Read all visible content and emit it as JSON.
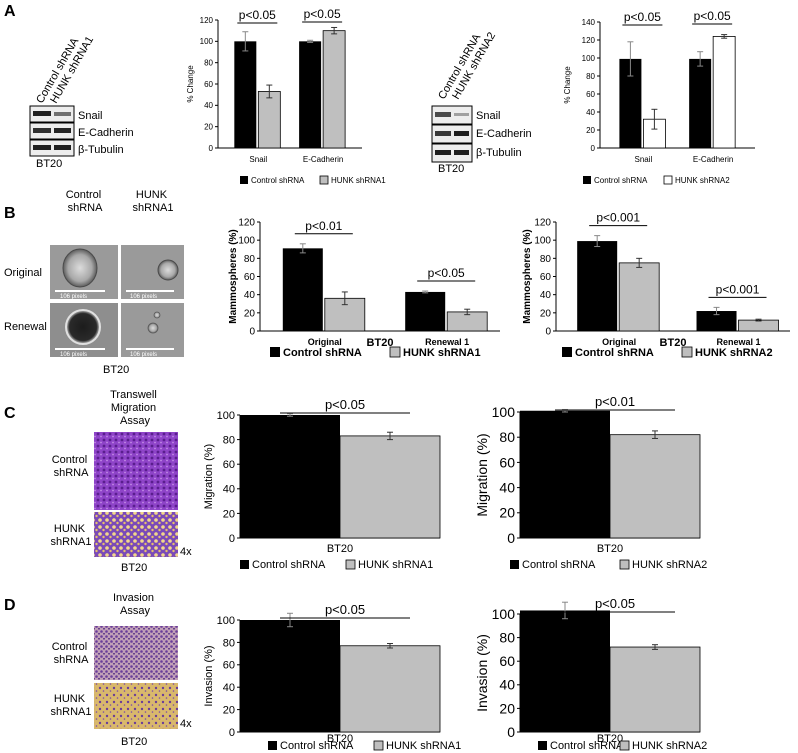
{
  "panels": {
    "A": {
      "letter": "A",
      "blot1": {
        "lane_labels": [
          "Control shRNA",
          "HUNK shRNA1"
        ],
        "bands": [
          "Snail",
          "E-Cadherin",
          "β-Tubulin"
        ],
        "cell_line": "BT20"
      },
      "blot2": {
        "lane_labels": [
          "Control shRNA",
          "HUNK shRNA2"
        ],
        "bands": [
          "Snail",
          "E-Cadherin",
          "β-Tubulin"
        ],
        "cell_line": "BT20"
      }
    },
    "B": {
      "letter": "B",
      "col_labels": [
        "Control\nshRNA",
        "HUNK\nshRNA1"
      ],
      "row_labels": [
        "Original",
        "Renewal"
      ],
      "scale_label": "106 pixels",
      "cell_line": "BT20"
    },
    "C": {
      "letter": "C",
      "assay_title": "Transwell\nMigration\nAssay",
      "row_labels": [
        "Control\nshRNA",
        "HUNK\nshRNA1"
      ],
      "magnification": "4x",
      "cell_line": "BT20"
    },
    "D": {
      "letter": "D",
      "assay_title": "Invasion\nAssay",
      "row_labels": [
        "Control\nshRNA",
        "HUNK\nshRNA1"
      ],
      "magnification": "4x",
      "cell_line": "BT20"
    }
  },
  "colors": {
    "control": "#000000",
    "hunk_gray": "#bfbfbf",
    "hunk_white": "#ffffff",
    "purple": "#7b3fb0",
    "tan": "#d7ba7a"
  },
  "chart_data": [
    {
      "id": "A1",
      "type": "bar",
      "categories": [
        "Snail",
        "E-Cadherin"
      ],
      "ylabel": "% Change",
      "xlabel": "",
      "ylim": [
        0,
        120
      ],
      "yticks": [
        0,
        20,
        40,
        60,
        80,
        100,
        120
      ],
      "series": [
        {
          "name": "Control shRNA",
          "values": [
            100,
            100
          ],
          "errors": [
            9,
            1
          ]
        },
        {
          "name": "HUNK shRNA1",
          "values": [
            53,
            110
          ],
          "errors": [
            6,
            3
          ]
        }
      ],
      "annotations": [
        "p<0.05",
        "p<0.05"
      ],
      "legend": "bottom"
    },
    {
      "id": "A2",
      "type": "bar",
      "categories": [
        "Snail",
        "E-Cadherin"
      ],
      "ylabel": "% Change",
      "xlabel": "",
      "ylim": [
        0,
        140
      ],
      "yticks": [
        0,
        20,
        40,
        60,
        80,
        100,
        120,
        140
      ],
      "series": [
        {
          "name": "Control shRNA",
          "values": [
            99,
            99
          ],
          "errors": [
            19,
            8
          ]
        },
        {
          "name": "HUNK shRNA2",
          "values": [
            32,
            124
          ],
          "errors": [
            11,
            2
          ]
        }
      ],
      "annotations": [
        "p<0.05",
        "p<0.05"
      ],
      "legend": "bottom"
    },
    {
      "id": "B1",
      "type": "bar",
      "categories": [
        "Original",
        "Renewal 1"
      ],
      "ylabel": "Mammospheres (%)",
      "xlabel": "BT20",
      "ylim": [
        0,
        120
      ],
      "yticks": [
        0,
        20,
        40,
        60,
        80,
        100,
        120
      ],
      "series": [
        {
          "name": "Control shRNA",
          "values": [
            91,
            43
          ],
          "errors": [
            5,
            1
          ]
        },
        {
          "name": "HUNK shRNA1",
          "values": [
            36,
            21
          ],
          "errors": [
            7,
            3
          ]
        }
      ],
      "annotations": [
        "p<0.01",
        "p<0.05"
      ],
      "legend": "bottom"
    },
    {
      "id": "B2",
      "type": "bar",
      "categories": [
        "Original",
        "Renewal 1"
      ],
      "ylabel": "Mammospheres (%)",
      "xlabel": "BT20",
      "ylim": [
        0,
        120
      ],
      "yticks": [
        0,
        20,
        40,
        60,
        80,
        100,
        120
      ],
      "series": [
        {
          "name": "Control shRNA",
          "values": [
            99,
            22
          ],
          "errors": [
            6,
            4
          ]
        },
        {
          "name": "HUNK shRNA2",
          "values": [
            75,
            12
          ],
          "errors": [
            5,
            1
          ]
        }
      ],
      "annotations": [
        "p<0.001",
        "p<0.001"
      ],
      "legend": "bottom"
    },
    {
      "id": "C1",
      "type": "bar",
      "categories": [
        "BT20"
      ],
      "ylabel": "Migration (%)",
      "xlabel": "",
      "ylim": [
        0,
        100
      ],
      "yticks": [
        0,
        20,
        40,
        60,
        80,
        100
      ],
      "series": [
        {
          "name": "Control shRNA",
          "values": [
            100
          ],
          "errors": [
            1
          ]
        },
        {
          "name": "HUNK shRNA1",
          "values": [
            83
          ],
          "errors": [
            3
          ]
        }
      ],
      "annotations": [
        "p<0.05"
      ],
      "legend": "bottom"
    },
    {
      "id": "C2",
      "type": "bar",
      "categories": [
        "BT20"
      ],
      "ylabel": "Migration (%)",
      "xlabel": "",
      "ylim": [
        0,
        100
      ],
      "yticks": [
        0,
        20,
        40,
        60,
        80,
        100
      ],
      "series": [
        {
          "name": "Control shRNA",
          "values": [
            101
          ],
          "errors": [
            1
          ]
        },
        {
          "name": "HUNK shRNA2",
          "values": [
            82
          ],
          "errors": [
            3
          ]
        }
      ],
      "annotations": [
        "p<0.01"
      ],
      "legend": "bottom"
    },
    {
      "id": "D1",
      "type": "bar",
      "categories": [
        "BT20"
      ],
      "ylabel": "Invasion (%)",
      "xlabel": "",
      "ylim": [
        0,
        100
      ],
      "yticks": [
        0,
        20,
        40,
        60,
        80,
        100
      ],
      "series": [
        {
          "name": "Control shRNA",
          "values": [
            100
          ],
          "errors": [
            6
          ]
        },
        {
          "name": "HUNK shRNA1",
          "values": [
            77
          ],
          "errors": [
            2
          ]
        }
      ],
      "annotations": [
        "p<0.05"
      ],
      "legend": "bottom"
    },
    {
      "id": "D2",
      "type": "bar",
      "categories": [
        "BT20"
      ],
      "ylabel": "Invasion (%)",
      "xlabel": "",
      "ylim": [
        0,
        100
      ],
      "yticks": [
        0,
        20,
        40,
        60,
        80,
        100
      ],
      "series": [
        {
          "name": "Control shRNA",
          "values": [
            103
          ],
          "errors": [
            7
          ]
        },
        {
          "name": "HUNK shRNA2",
          "values": [
            72
          ],
          "errors": [
            2
          ]
        }
      ],
      "annotations": [
        "p<0.05"
      ],
      "legend": "bottom"
    }
  ]
}
